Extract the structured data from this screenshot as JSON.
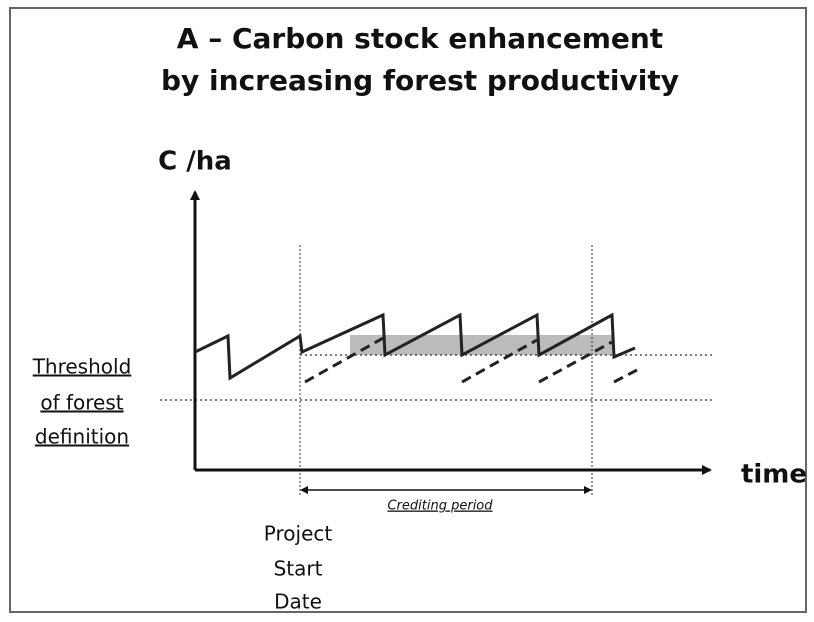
{
  "title": [
    "A – Carbon stock enhancement",
    "by increasing forest productivity"
  ],
  "y_axis_label": "C /ha",
  "x_axis_label": "time",
  "threshold_label": [
    "Threshold",
    "of forest",
    "definition"
  ],
  "crediting_period_label": "Crediting period",
  "project_start_label": [
    "Project",
    "Start",
    "Date"
  ]
}
